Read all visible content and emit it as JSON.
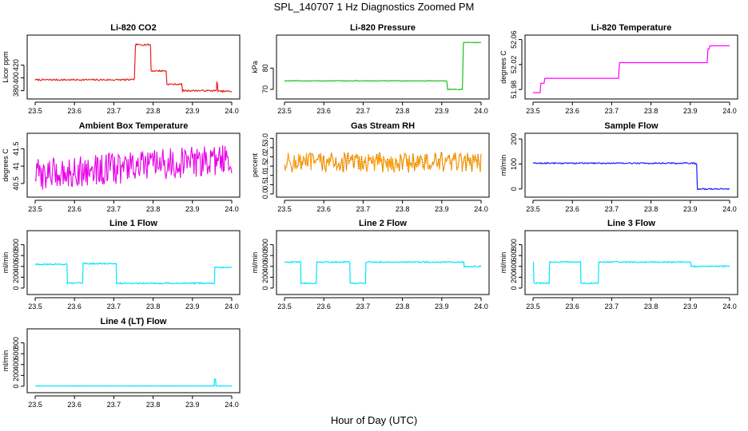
{
  "figure": {
    "title": "SPL_140707  1 Hz Diagnostics Zoomed PM",
    "xlabel": "Hour of Day (UTC)"
  },
  "chart_data": [
    {
      "type": "line",
      "title": "Li-820 CO2",
      "ylabel": "Licor ppm",
      "color": "#e8201a",
      "xlim": [
        23.5,
        24.0
      ],
      "ylim": [
        372,
        462
      ],
      "xticks": [
        "23.5",
        "23.6",
        "23.7",
        "23.8",
        "23.9",
        "24.0"
      ],
      "yticks": [
        {
          "v": 380,
          "label": "380"
        },
        {
          "v": 400,
          "label": "400"
        },
        {
          "v": 420,
          "label": "420"
        }
      ],
      "series": [
        {
          "name": "CO2",
          "mode": "step",
          "x": [
            23.5,
            23.75,
            23.755,
            23.79,
            23.795,
            23.83,
            23.835,
            23.87,
            23.875,
            23.96,
            23.962,
            23.965,
            24.0
          ],
          "y": [
            397,
            398,
            452,
            452,
            411,
            411,
            390,
            390,
            380,
            380,
            393,
            379,
            379
          ],
          "noise": 1.2
        }
      ]
    },
    {
      "type": "line",
      "title": "Li-820 Pressure",
      "ylabel": "kPa",
      "color": "#1fbf1f",
      "xlim": [
        23.5,
        24.0
      ],
      "ylim": [
        67,
        94
      ],
      "xticks": [
        "23.5",
        "23.6",
        "23.7",
        "23.8",
        "23.9",
        "24.0"
      ],
      "yticks": [
        {
          "v": 70,
          "label": "70"
        },
        {
          "v": 80,
          "label": "80"
        }
      ],
      "series": [
        {
          "name": "Pressure",
          "mode": "step",
          "x": [
            23.5,
            23.91,
            23.915,
            23.95,
            23.955,
            24.0
          ],
          "y": [
            74,
            74,
            70,
            70,
            92,
            92
          ],
          "noise": 0.15
        }
      ]
    },
    {
      "type": "line",
      "title": "Li-820 Temperature",
      "ylabel": "degrees C",
      "color": "#ff00ff",
      "xlim": [
        23.5,
        24.0
      ],
      "ylim": [
        51.97,
        52.062
      ],
      "xticks": [
        "23.5",
        "23.6",
        "23.7",
        "23.8",
        "23.9",
        "24.0"
      ],
      "yticks": [
        {
          "v": 51.98,
          "label": "51.98"
        },
        {
          "v": 52.02,
          "label": "52.02"
        },
        {
          "v": 52.06,
          "label": "52.06"
        }
      ],
      "series": [
        {
          "name": "Temperature",
          "mode": "step",
          "x": [
            23.5,
            23.52,
            23.53,
            23.715,
            23.72,
            23.8,
            23.945,
            23.95,
            24.0
          ],
          "y": [
            51.975,
            51.99,
            51.998,
            51.998,
            52.023,
            52.023,
            52.045,
            52.05,
            52.05
          ],
          "noise": 0
        }
      ]
    },
    {
      "type": "line",
      "title": "Ambient Box Temperature",
      "ylabel": "degrees C",
      "color": "#e800e8",
      "xlim": [
        23.5,
        24.0
      ],
      "ylim": [
        40.2,
        41.85
      ],
      "xticks": [
        "23.5",
        "23.6",
        "23.7",
        "23.8",
        "23.9",
        "24.0"
      ],
      "yticks": [
        {
          "v": 40.5,
          "label": "40.5"
        },
        {
          "v": 41.0,
          "label": "41"
        },
        {
          "v": 41.5,
          "label": "41.5"
        }
      ],
      "series": [
        {
          "name": "Box Temp",
          "mode": "noise",
          "x": [
            23.5,
            24.0
          ],
          "y": [
            40.75,
            41.2
          ],
          "noise": 0.45
        }
      ]
    },
    {
      "type": "line",
      "title": "Gas Stream RH",
      "ylabel": "percent",
      "color": "#ff9900",
      "dot": "#7a5a00",
      "xlim": [
        23.5,
        24.0
      ],
      "ylim": [
        0.0,
        3.1
      ],
      "xticks": [
        "23.5",
        "23.6",
        "23.7",
        "23.8",
        "23.9",
        "24.0"
      ],
      "yticks": [
        {
          "v": 0.0,
          "label": "0.0"
        },
        {
          "v": 0.5,
          "label": "0.5"
        },
        {
          "v": 1.0,
          "label": "1.0"
        },
        {
          "v": 1.5,
          "label": "1.5"
        },
        {
          "v": 2.0,
          "label": "2.0"
        },
        {
          "v": 2.5,
          "label": "2.5"
        },
        {
          "v": 3.0,
          "label": "3.0"
        }
      ],
      "series": [
        {
          "name": "RH",
          "mode": "noise",
          "x": [
            23.5,
            24.0
          ],
          "y": [
            1.7,
            1.7
          ],
          "noise": 0.55
        }
      ]
    },
    {
      "type": "line",
      "title": "Sample Flow",
      "ylabel": "ml/min",
      "color": "#1a1aff",
      "xlim": [
        23.5,
        24.0
      ],
      "ylim": [
        -20,
        210
      ],
      "xticks": [
        "23.5",
        "23.6",
        "23.7",
        "23.8",
        "23.9",
        "24.0"
      ],
      "yticks": [
        {
          "v": 0,
          "label": "0"
        },
        {
          "v": 100,
          "label": "100"
        },
        {
          "v": 200,
          "label": "200"
        }
      ],
      "series": [
        {
          "name": "Sample Flow",
          "mode": "step",
          "x": [
            23.5,
            23.912,
            23.918,
            24.0
          ],
          "y": [
            103,
            100,
            0,
            0
          ],
          "noise": 2.5
        }
      ]
    },
    {
      "type": "line",
      "title": "Line 1 Flow",
      "ylabel": "ml/min",
      "color": "#00e5ff",
      "xlim": [
        23.5,
        24.0
      ],
      "ylim": [
        -60,
        1000
      ],
      "xticks": [
        "23.5",
        "23.6",
        "23.7",
        "23.8",
        "23.9",
        "24.0"
      ],
      "yticks": [
        {
          "v": 0,
          "label": "0"
        },
        {
          "v": 200,
          "label": "200"
        },
        {
          "v": 400,
          "label": "400"
        },
        {
          "v": 600,
          "label": "600"
        },
        {
          "v": 800,
          "label": "800"
        }
      ],
      "series": [
        {
          "name": "Line 1",
          "mode": "step",
          "x": [
            23.5,
            23.58,
            23.582,
            23.62,
            23.622,
            23.705,
            23.707,
            23.955,
            23.957,
            24.0
          ],
          "y": [
            440,
            440,
            90,
            90,
            450,
            450,
            90,
            90,
            380,
            380
          ],
          "noise": 12
        }
      ]
    },
    {
      "type": "line",
      "title": "Line 2 Flow",
      "ylabel": "ml/min",
      "color": "#00e5ff",
      "xlim": [
        23.5,
        24.0
      ],
      "ylim": [
        -60,
        1000
      ],
      "xticks": [
        "23.5",
        "23.6",
        "23.7",
        "23.8",
        "23.9",
        "24.0"
      ],
      "yticks": [
        {
          "v": 0,
          "label": "0"
        },
        {
          "v": 200,
          "label": "200"
        },
        {
          "v": 400,
          "label": "400"
        },
        {
          "v": 600,
          "label": "600"
        },
        {
          "v": 800,
          "label": "800"
        }
      ],
      "series": [
        {
          "name": "Line 2",
          "mode": "step",
          "x": [
            23.5,
            23.54,
            23.542,
            23.58,
            23.582,
            23.665,
            23.667,
            23.705,
            23.707,
            23.955,
            23.957,
            24.0
          ],
          "y": [
            480,
            480,
            90,
            90,
            480,
            480,
            90,
            90,
            480,
            480,
            400,
            400
          ],
          "noise": 12
        }
      ]
    },
    {
      "type": "line",
      "title": "Line 3 Flow",
      "ylabel": "ml/min",
      "color": "#00e5ff",
      "xlim": [
        23.5,
        24.0
      ],
      "ylim": [
        -60,
        1000
      ],
      "xticks": [
        "23.5",
        "23.6",
        "23.7",
        "23.8",
        "23.9",
        "24.0"
      ],
      "yticks": [
        {
          "v": 0,
          "label": "0"
        },
        {
          "v": 200,
          "label": "200"
        },
        {
          "v": 400,
          "label": "400"
        },
        {
          "v": 600,
          "label": "600"
        },
        {
          "v": 800,
          "label": "800"
        }
      ],
      "series": [
        {
          "name": "Line 3",
          "mode": "step",
          "x": [
            23.5,
            23.502,
            23.54,
            23.542,
            23.62,
            23.622,
            23.665,
            23.667,
            23.9,
            23.902,
            24.0
          ],
          "y": [
            480,
            90,
            90,
            480,
            480,
            90,
            90,
            480,
            480,
            400,
            400
          ],
          "noise": 12
        }
      ]
    },
    {
      "type": "line",
      "title": "Line 4 (LT) Flow",
      "ylabel": "ml/min",
      "color": "#00e5ff",
      "xlim": [
        23.5,
        24.0
      ],
      "ylim": [
        -60,
        1000
      ],
      "xticks": [
        "23.5",
        "23.6",
        "23.7",
        "23.8",
        "23.9",
        "24.0"
      ],
      "yticks": [
        {
          "v": 0,
          "label": "0"
        },
        {
          "v": 200,
          "label": "200"
        },
        {
          "v": 400,
          "label": "400"
        },
        {
          "v": 600,
          "label": "600"
        },
        {
          "v": 800,
          "label": "800"
        }
      ],
      "series": [
        {
          "name": "Line 4 (LT)",
          "mode": "step",
          "x": [
            23.5,
            23.955,
            23.956,
            23.958,
            23.96,
            24.0
          ],
          "y": [
            5,
            5,
            130,
            130,
            5,
            5
          ],
          "noise": 1.5
        }
      ]
    }
  ]
}
